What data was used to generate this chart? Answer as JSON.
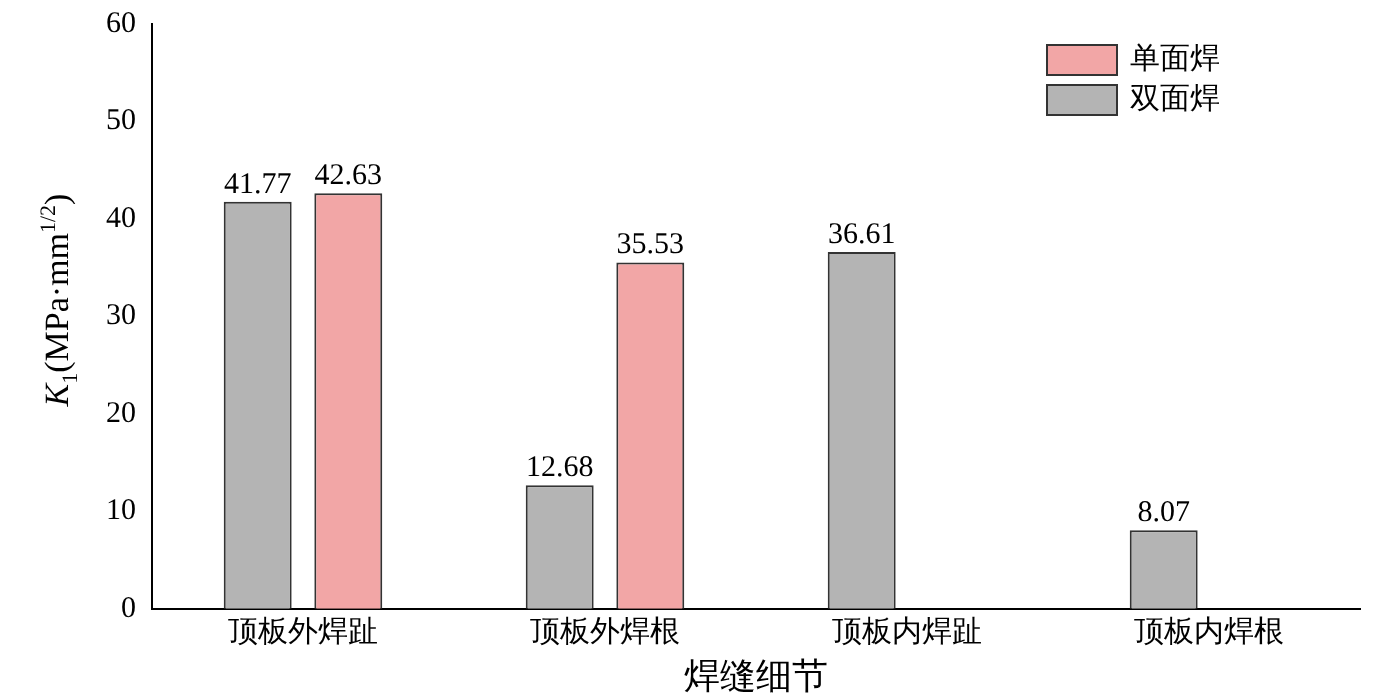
{
  "chart_data": {
    "type": "bar",
    "xlabel": "焊缝细节",
    "ylabel": "K$_{1}$(MPa·mm$^{1/2}$)",
    "categories": [
      "顶板外焊趾",
      "顶板外焊根",
      "顶板内焊趾",
      "顶板内焊根"
    ],
    "series": [
      {
        "name": "双面焊",
        "color": "#b4b4b4",
        "values": [
          41.77,
          12.68,
          36.61,
          8.07
        ]
      },
      {
        "name": "单面焊",
        "color": "#f2a6a6",
        "values": [
          42.63,
          35.53,
          null,
          null
        ]
      }
    ],
    "ylim": [
      0,
      60
    ],
    "yticks": [
      0,
      10,
      20,
      30,
      40,
      50,
      60
    ],
    "grid": false,
    "legend": "top right",
    "data_labels": true
  }
}
